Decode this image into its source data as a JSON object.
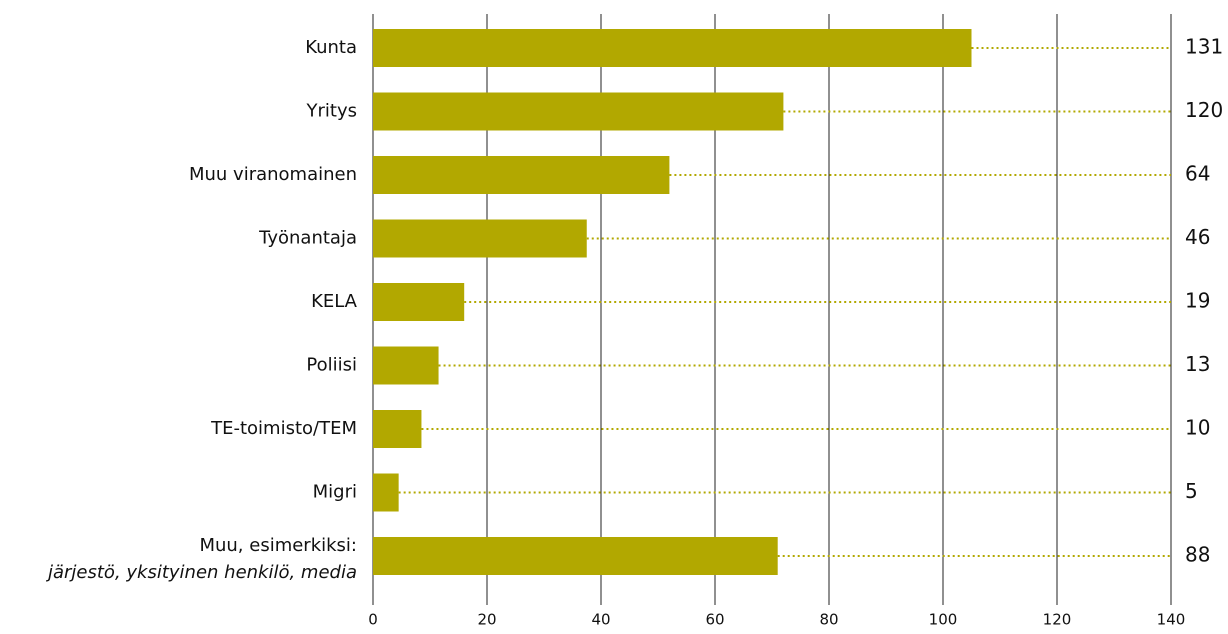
{
  "chart_data": {
    "type": "bar",
    "orientation": "horizontal",
    "categories": [
      "Kunta",
      "Yritys",
      "Muu viranomainen",
      "Työnantaja",
      "KELA",
      "Poliisi",
      "TE-toimisto/TEM",
      "Migri",
      "Muu, esimerkiksi:"
    ],
    "category_note": "järjestö, yksityinen henkilö, media",
    "values": [
      105,
      72,
      52,
      37.5,
      16,
      11.5,
      8.5,
      4.5,
      71
    ],
    "totals": [
      131,
      120,
      64,
      46,
      19,
      13,
      10,
      5,
      88
    ],
    "color": "#b2a800",
    "xlim": [
      0,
      140
    ],
    "xticks": [
      0,
      20,
      40,
      60,
      80,
      100,
      120,
      140
    ],
    "grid": true
  }
}
